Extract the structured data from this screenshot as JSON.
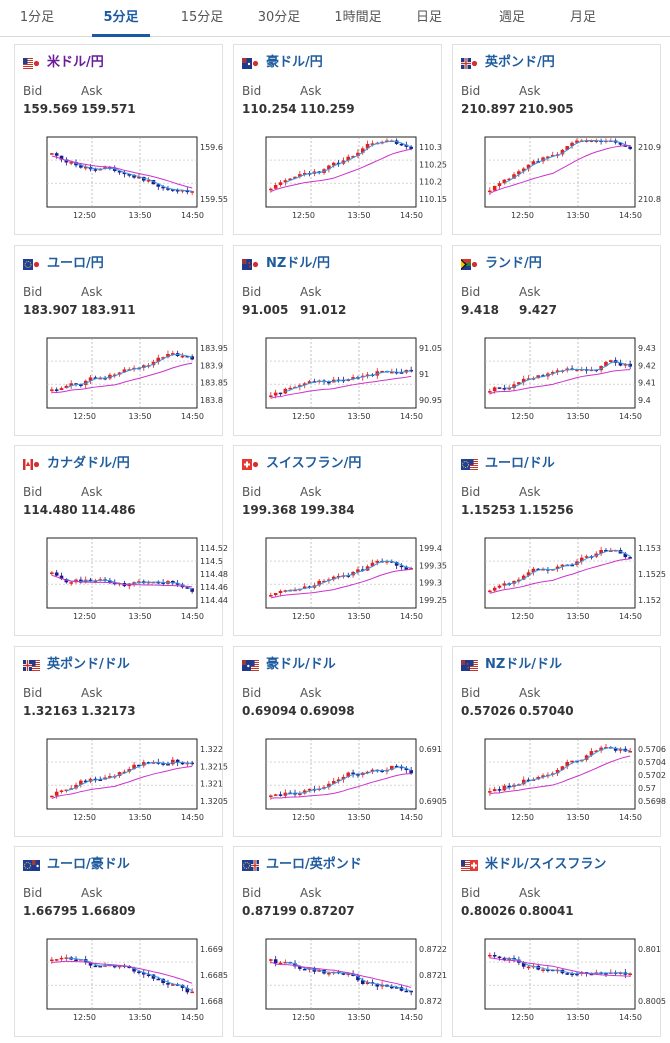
{
  "tabs": [
    {
      "label": "1分足",
      "active": false
    },
    {
      "label": "5分足",
      "active": true
    },
    {
      "label": "15分足",
      "active": false
    },
    {
      "label": "30分足",
      "active": false
    },
    {
      "label": "1時間足",
      "active": false
    },
    {
      "label": "日足",
      "active": false
    },
    {
      "label": "週足",
      "active": false
    },
    {
      "label": "月足",
      "active": false
    }
  ],
  "bid_label": "Bid",
  "ask_label": "Ask",
  "x_ticks": [
    "12:50",
    "13:50",
    "14:50"
  ],
  "colors": {
    "up": "#e02020",
    "down": "#1a1a8c",
    "ma_short": "#2e9be6",
    "ma_long": "#cc33cc",
    "title": "#1f5c9e"
  },
  "cards": [
    {
      "pair": "米ドル/円",
      "pair_color": "#6a1b9a",
      "flag": "us-flag",
      "bid": "159.569",
      "ask": "159.571",
      "yticks": [
        "159.6",
        "159.55"
      ],
      "trend": "down",
      "seed": 11
    },
    {
      "pair": "豪ドル/円",
      "flag": "au-flag",
      "bid": "110.254",
      "ask": "110.259",
      "yticks": [
        "110.3",
        "110.25",
        "110.2",
        "110.15"
      ],
      "trend": "up",
      "seed": 23
    },
    {
      "pair": "英ポンド/円",
      "flag": "gb-flag",
      "bid": "210.897",
      "ask": "210.905",
      "yticks": [
        "210.9",
        "210.8"
      ],
      "trend": "up",
      "seed": 37
    },
    {
      "pair": "ユーロ/円",
      "flag": "eu-flag",
      "bid": "183.907",
      "ask": "183.911",
      "yticks": [
        "183.95",
        "183.9",
        "183.85",
        "183.8"
      ],
      "trend": "up",
      "seed": 41
    },
    {
      "pair": "NZドル/円",
      "flag": "nz-flag",
      "bid": "91.005",
      "ask": "91.012",
      "yticks": [
        "91.05",
        "91",
        "90.95"
      ],
      "trend": "up",
      "seed": 53
    },
    {
      "pair": "ランド/円",
      "flag": "za-flag",
      "bid": "9.418",
      "ask": "9.427",
      "yticks": [
        "9.43",
        "9.42",
        "9.41",
        "9.4"
      ],
      "trend": "up",
      "seed": 67
    },
    {
      "pair": "カナダドル/円",
      "flag": "ca-flag",
      "bid": "114.480",
      "ask": "114.486",
      "yticks": [
        "114.52",
        "114.5",
        "114.48",
        "114.46",
        "114.44"
      ],
      "trend": "flat",
      "seed": 71
    },
    {
      "pair": "スイスフラン/円",
      "flag": "ch-flag",
      "bid": "199.368",
      "ask": "199.384",
      "yticks": [
        "199.4",
        "199.35",
        "199.3",
        "199.25"
      ],
      "trend": "up",
      "seed": 83
    },
    {
      "pair": "ユーロ/ドル",
      "flag": "eu-us-flag",
      "bid": "1.15253",
      "ask": "1.15256",
      "yticks": [
        "1.153",
        "1.1525",
        "1.152"
      ],
      "trend": "up",
      "seed": 97
    },
    {
      "pair": "英ポンド/ドル",
      "flag": "gb-us-flag",
      "bid": "1.32163",
      "ask": "1.32173",
      "yticks": [
        "1.322",
        "1.3215",
        "1.321",
        "1.3205"
      ],
      "trend": "up",
      "seed": 101
    },
    {
      "pair": "豪ドル/ドル",
      "flag": "au-us-flag",
      "bid": "0.69094",
      "ask": "0.69098",
      "yticks": [
        "0.691",
        "0.6905"
      ],
      "trend": "up",
      "seed": 113
    },
    {
      "pair": "NZドル/ドル",
      "flag": "nz-us-flag",
      "bid": "0.57026",
      "ask": "0.57040",
      "yticks": [
        "0.5706",
        "0.5704",
        "0.5702",
        "0.57",
        "0.5698"
      ],
      "trend": "up",
      "seed": 127
    },
    {
      "pair": "ユーロ/豪ドル",
      "flag": "eu-au-flag",
      "bid": "1.66795",
      "ask": "1.66809",
      "yticks": [
        "1.669",
        "1.6685",
        "1.668"
      ],
      "trend": "down",
      "seed": 131
    },
    {
      "pair": "ユーロ/英ポンド",
      "flag": "eu-gb-flag",
      "bid": "0.87199",
      "ask": "0.87207",
      "yticks": [
        "0.8722",
        "0.8721",
        "0.872"
      ],
      "trend": "down",
      "seed": 149
    },
    {
      "pair": "米ドル/スイスフラン",
      "flag": "us-ch-flag",
      "bid": "0.80026",
      "ask": "0.80041",
      "yticks": [
        "0.801",
        "0.8005"
      ],
      "trend": "down",
      "seed": 157
    }
  ]
}
